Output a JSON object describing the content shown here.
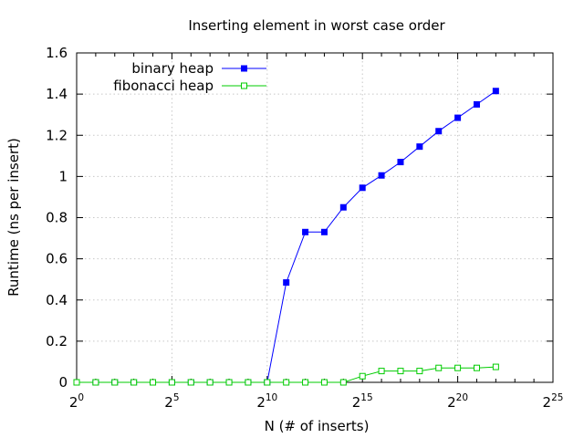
{
  "chart_data": {
    "type": "line",
    "title": "Inserting element in worst case order",
    "xlabel": "N (# of inserts)",
    "ylabel": "Runtime (ns per insert)",
    "x_scale": "log2",
    "xlim_exponent": [
      0,
      25
    ],
    "xticks": [
      {
        "base": "2",
        "exp": "0",
        "value": 0
      },
      {
        "base": "2",
        "exp": "5",
        "value": 5
      },
      {
        "base": "2",
        "exp": "10",
        "value": 10
      },
      {
        "base": "2",
        "exp": "15",
        "value": 15
      },
      {
        "base": "2",
        "exp": "20",
        "value": 20
      },
      {
        "base": "2",
        "exp": "25",
        "value": 25
      }
    ],
    "ylim": [
      0,
      1.6
    ],
    "yticks": [
      {
        "label": "0",
        "value": 0
      },
      {
        "label": "0.2",
        "value": 0.2
      },
      {
        "label": "0.4",
        "value": 0.4
      },
      {
        "label": "0.6",
        "value": 0.6
      },
      {
        "label": "0.8",
        "value": 0.8
      },
      {
        "label": "1",
        "value": 1.0
      },
      {
        "label": "1.2",
        "value": 1.2
      },
      {
        "label": "1.4",
        "value": 1.4
      },
      {
        "label": "1.6",
        "value": 1.6
      }
    ],
    "grid": true,
    "legend_position": "top-left",
    "series": [
      {
        "name": "binary heap",
        "color": "#0000ff",
        "marker": "filled-square",
        "x_exponent": [
          0,
          1,
          2,
          3,
          4,
          5,
          6,
          7,
          8,
          9,
          10,
          11,
          12,
          13,
          14,
          15,
          16,
          17,
          18,
          19,
          20,
          21,
          22
        ],
        "values": [
          0,
          0,
          0,
          0,
          0,
          0,
          0,
          0,
          0,
          0,
          0,
          0.485,
          0.73,
          0.73,
          0.85,
          0.945,
          1.005,
          1.07,
          1.145,
          1.22,
          1.285,
          1.35,
          1.415
        ]
      },
      {
        "name": "fibonacci heap",
        "color": "#00cc00",
        "marker": "open-square",
        "x_exponent": [
          0,
          1,
          2,
          3,
          4,
          5,
          6,
          7,
          8,
          9,
          10,
          11,
          12,
          13,
          14,
          15,
          16,
          17,
          18,
          19,
          20,
          21,
          22
        ],
        "values": [
          0,
          0,
          0,
          0,
          0,
          0,
          0,
          0,
          0,
          0,
          0,
          0,
          0,
          0,
          0,
          0.03,
          0.055,
          0.055,
          0.055,
          0.07,
          0.07,
          0.07,
          0.075
        ]
      }
    ]
  }
}
